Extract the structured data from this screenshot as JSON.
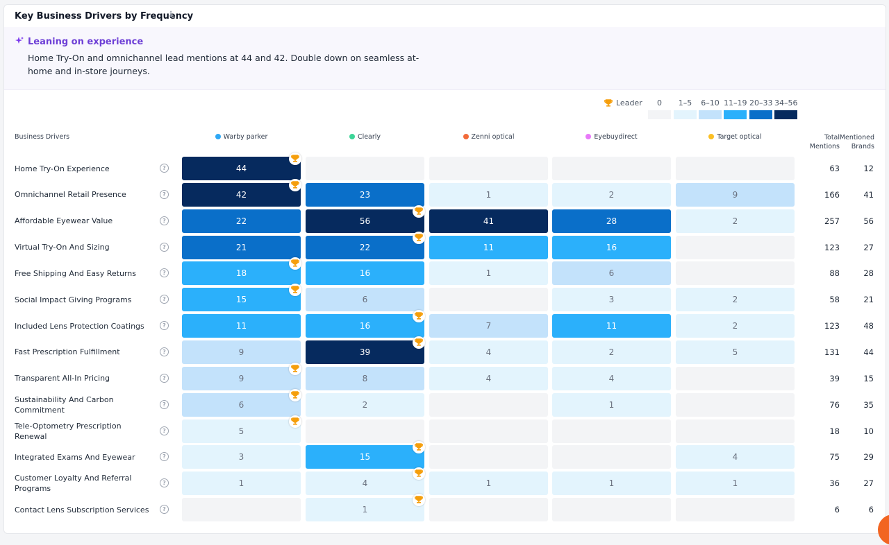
{
  "header": {
    "title": "Key Business Drivers by Frequency"
  },
  "insight": {
    "title": "Leaning on experience",
    "text": "Home Try-On and omnichannel lead mentions at 44 and 42. Double down on seamless at-home and in-store journeys."
  },
  "legend": {
    "leader_label": "Leader",
    "bins": [
      {
        "label": "0",
        "min": 0,
        "max": 0,
        "color": "#f3f4f6"
      },
      {
        "label": "1–5",
        "min": 1,
        "max": 5,
        "color": "#e3f4fd"
      },
      {
        "label": "6–10",
        "min": 6,
        "max": 10,
        "color": "#c3e2fb"
      },
      {
        "label": "11–19",
        "min": 11,
        "max": 19,
        "color": "#2bb0fb"
      },
      {
        "label": "20–33",
        "min": 20,
        "max": 33,
        "color": "#0a6fc9"
      },
      {
        "label": "34–56",
        "min": 34,
        "max": 56,
        "color": "#062a5e"
      }
    ]
  },
  "table": {
    "driver_header": "Business Drivers",
    "total_header": "Total Mentions",
    "brands_header": "Mentioned Brands",
    "columns": [
      {
        "name": "Warby parker",
        "color": "#2ea8f5"
      },
      {
        "name": "Clearly",
        "color": "#3dd598"
      },
      {
        "name": "Zenni optical",
        "color": "#f26b3a"
      },
      {
        "name": "Eyebuydirect",
        "color": "#e879f9"
      },
      {
        "name": "Target optical",
        "color": "#fbbf24"
      }
    ],
    "rows": [
      {
        "label": "Home Try-On Experience",
        "values": [
          44,
          null,
          null,
          null,
          null
        ],
        "total": 63,
        "brands": 12,
        "leader": 0
      },
      {
        "label": "Omnichannel Retail Presence",
        "values": [
          42,
          23,
          1,
          2,
          9
        ],
        "total": 166,
        "brands": 41,
        "leader": 0
      },
      {
        "label": "Affordable Eyewear Value",
        "values": [
          22,
          56,
          41,
          28,
          2
        ],
        "total": 257,
        "brands": 56,
        "leader": 1
      },
      {
        "label": "Virtual Try-On And Sizing",
        "values": [
          21,
          22,
          11,
          16,
          null
        ],
        "total": 123,
        "brands": 27,
        "leader": 1
      },
      {
        "label": "Free Shipping And Easy Returns",
        "values": [
          18,
          16,
          1,
          6,
          null
        ],
        "total": 88,
        "brands": 28,
        "leader": 0
      },
      {
        "label": "Social Impact Giving Programs",
        "values": [
          15,
          6,
          null,
          3,
          2
        ],
        "total": 58,
        "brands": 21,
        "leader": 0
      },
      {
        "label": "Included Lens Protection Coatings",
        "values": [
          11,
          16,
          7,
          11,
          2
        ],
        "total": 123,
        "brands": 48,
        "leader": 1
      },
      {
        "label": "Fast Prescription Fulfillment",
        "values": [
          9,
          39,
          4,
          2,
          5
        ],
        "total": 131,
        "brands": 44,
        "leader": 1
      },
      {
        "label": "Transparent All-In Pricing",
        "values": [
          9,
          8,
          4,
          4,
          null
        ],
        "total": 39,
        "brands": 15,
        "leader": 0
      },
      {
        "label": "Sustainability And Carbon Commitment",
        "values": [
          6,
          2,
          null,
          1,
          null
        ],
        "total": 76,
        "brands": 35,
        "leader": 0
      },
      {
        "label": "Tele-Optometry Prescription Renewal",
        "values": [
          5,
          null,
          null,
          null,
          null
        ],
        "total": 18,
        "brands": 10,
        "leader": 0
      },
      {
        "label": "Integrated Exams And Eyewear",
        "values": [
          3,
          15,
          null,
          null,
          4
        ],
        "total": 75,
        "brands": 29,
        "leader": 1
      },
      {
        "label": "Customer Loyalty And Referral Programs",
        "values": [
          1,
          4,
          1,
          1,
          1
        ],
        "total": 36,
        "brands": 27,
        "leader": 1
      },
      {
        "label": "Contact Lens Subscription Services",
        "values": [
          null,
          1,
          null,
          null,
          null
        ],
        "total": 6,
        "brands": 6,
        "leader": 1
      }
    ]
  }
}
